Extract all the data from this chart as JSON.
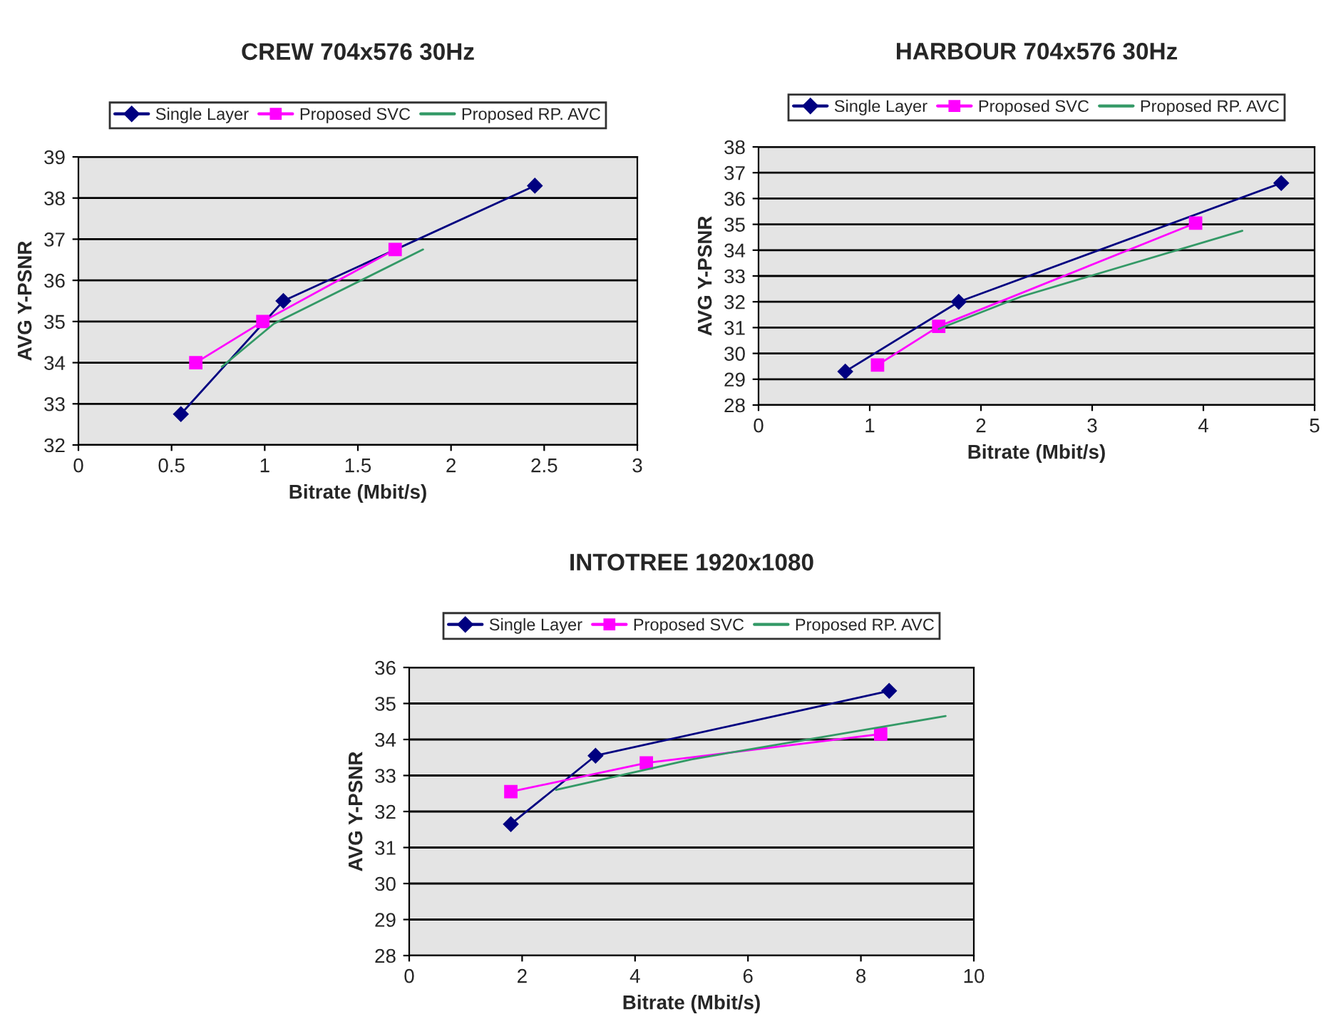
{
  "chart_data": [
    {
      "type": "line",
      "title": "CREW 704x576 30Hz",
      "xlabel": "Bitrate (Mbit/s)",
      "ylabel": "AVG Y-PSNR",
      "xlim": [
        0,
        3
      ],
      "xticks": [
        0,
        0.5,
        1,
        1.5,
        2,
        2.5,
        3
      ],
      "ylim": [
        32,
        39
      ],
      "yticks": [
        32,
        33,
        34,
        35,
        36,
        37,
        38,
        39
      ],
      "grid": "y",
      "legend": "top",
      "series": [
        {
          "name": "Single Layer",
          "color": "#000080",
          "marker": "diamond",
          "x": [
            0.55,
            1.1,
            2.45
          ],
          "values": [
            32.75,
            35.5,
            38.3
          ]
        },
        {
          "name": "Proposed SVC",
          "color": "#ff00ff",
          "marker": "square",
          "x": [
            0.63,
            0.99,
            1.7
          ],
          "values": [
            34.0,
            35.0,
            36.75
          ]
        },
        {
          "name": "Proposed RP. AVC",
          "color": "#339966",
          "marker": "none",
          "x": [
            0.77,
            1.05,
            1.85
          ],
          "values": [
            33.9,
            34.95,
            36.75
          ]
        }
      ]
    },
    {
      "type": "line",
      "title": "HARBOUR 704x576 30Hz",
      "xlabel": "Bitrate (Mbit/s)",
      "ylabel": "AVG Y-PSNR",
      "xlim": [
        0,
        5
      ],
      "xticks": [
        0,
        1,
        2,
        3,
        4,
        5
      ],
      "ylim": [
        28,
        38
      ],
      "yticks": [
        28,
        29,
        30,
        31,
        32,
        33,
        34,
        35,
        36,
        37,
        38
      ],
      "grid": "y",
      "legend": "top",
      "series": [
        {
          "name": "Single Layer",
          "color": "#000080",
          "marker": "diamond",
          "x": [
            0.78,
            1.8,
            4.7
          ],
          "values": [
            29.3,
            32.0,
            36.6
          ]
        },
        {
          "name": "Proposed SVC",
          "color": "#ff00ff",
          "marker": "square",
          "x": [
            1.07,
            1.62,
            3.93
          ],
          "values": [
            29.55,
            31.05,
            35.05
          ]
        },
        {
          "name": "Proposed RP. AVC",
          "color": "#339966",
          "marker": "none",
          "x": [
            1.62,
            2.36,
            4.35
          ],
          "values": [
            30.95,
            32.2,
            34.75
          ]
        }
      ]
    },
    {
      "type": "line",
      "title": "INTOTREE 1920x1080",
      "xlabel": "Bitrate (Mbit/s)",
      "ylabel": "AVG Y-PSNR",
      "xlim": [
        0,
        10
      ],
      "xticks": [
        0,
        2,
        4,
        6,
        8,
        10
      ],
      "ylim": [
        28,
        36
      ],
      "yticks": [
        28,
        29,
        30,
        31,
        32,
        33,
        34,
        35,
        36
      ],
      "grid": "y",
      "legend": "top",
      "series": [
        {
          "name": "Single Layer",
          "color": "#000080",
          "marker": "diamond",
          "x": [
            1.8,
            3.3,
            8.5
          ],
          "values": [
            31.65,
            33.55,
            35.35
          ]
        },
        {
          "name": "Proposed SVC",
          "color": "#ff00ff",
          "marker": "square",
          "x": [
            1.8,
            4.2,
            8.35
          ],
          "values": [
            32.55,
            33.35,
            34.15
          ]
        },
        {
          "name": "Proposed RP. AVC",
          "color": "#339966",
          "marker": "none",
          "x": [
            2.6,
            5.0,
            9.5
          ],
          "values": [
            32.6,
            33.45,
            34.65
          ]
        }
      ]
    }
  ]
}
